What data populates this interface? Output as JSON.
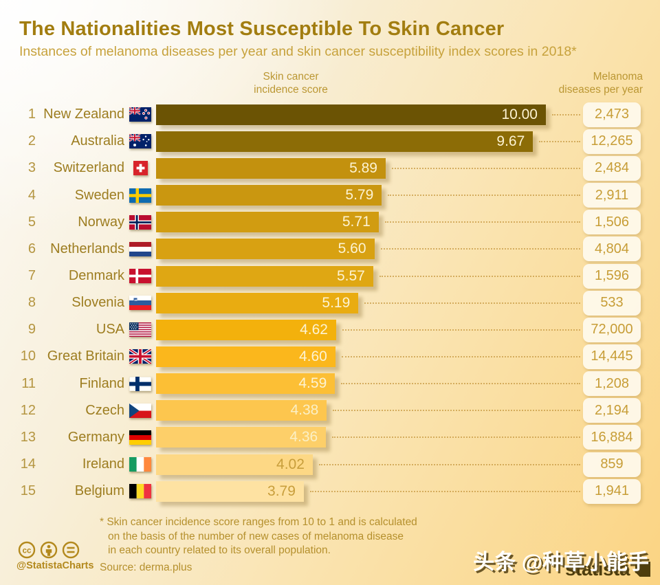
{
  "header": {
    "title": "The Nationalities Most Susceptible To Skin Cancer",
    "subtitle": "Instances of melanoma diseases per year and skin cancer susceptibility index scores in 2018*",
    "score_col_line1": "Skin cancer",
    "score_col_line2": "incidence score",
    "melanoma_col_line1": "Melanoma",
    "melanoma_col_line2": "diseases per year"
  },
  "rows": [
    {
      "rank": "1",
      "country": "New Zealand",
      "flag": "flag-new-zealand",
      "score": "10.00",
      "score_value": 10.0,
      "melanoma": "2,473",
      "bar_color": "#6b5304",
      "label_color": "#fdf3d2"
    },
    {
      "rank": "2",
      "country": "Australia",
      "flag": "flag-australia",
      "score": "9.67",
      "score_value": 9.67,
      "melanoma": "12,265",
      "bar_color": "#8c6c06",
      "label_color": "#fdf3d2"
    },
    {
      "rank": "3",
      "country": "Switzerland",
      "flag": "flag-switzerland",
      "score": "5.89",
      "score_value": 5.89,
      "melanoma": "2,484",
      "bar_color": "#c3910e",
      "label_color": "#fdf3d2"
    },
    {
      "rank": "4",
      "country": "Sweden",
      "flag": "flag-sweden",
      "score": "5.79",
      "score_value": 5.79,
      "melanoma": "2,911",
      "bar_color": "#ca9710",
      "label_color": "#fdf3d2"
    },
    {
      "rank": "5",
      "country": "Norway",
      "flag": "flag-norway",
      "score": "5.71",
      "score_value": 5.71,
      "melanoma": "1,506",
      "bar_color": "#d19c11",
      "label_color": "#fdf3d2"
    },
    {
      "rank": "6",
      "country": "Netherlands",
      "flag": "flag-netherlands",
      "score": "5.60",
      "score_value": 5.6,
      "melanoma": "4,804",
      "bar_color": "#d8a112",
      "label_color": "#fdf3d2"
    },
    {
      "rank": "7",
      "country": "Denmark",
      "flag": "flag-denmark",
      "score": "5.57",
      "score_value": 5.57,
      "melanoma": "1,596",
      "bar_color": "#dfa713",
      "label_color": "#fdf3d2"
    },
    {
      "rank": "8",
      "country": "Slovenia",
      "flag": "flag-slovenia",
      "score": "5.19",
      "score_value": 5.19,
      "melanoma": "533",
      "bar_color": "#e9ac11",
      "label_color": "#fdf3d2"
    },
    {
      "rank": "9",
      "country": "USA",
      "flag": "flag-usa",
      "score": "4.62",
      "score_value": 4.62,
      "melanoma": "72,000",
      "bar_color": "#f3b10c",
      "label_color": "#fdf3d2"
    },
    {
      "rank": "10",
      "country": "Great Britain",
      "flag": "flag-great-britain",
      "score": "4.60",
      "score_value": 4.6,
      "melanoma": "14,445",
      "bar_color": "#fbb71c",
      "label_color": "#fdf3d2"
    },
    {
      "rank": "11",
      "country": "Finland",
      "flag": "flag-finland",
      "score": "4.59",
      "score_value": 4.59,
      "melanoma": "1,208",
      "bar_color": "#fcbf35",
      "label_color": "#fdf3d2"
    },
    {
      "rank": "12",
      "country": "Czech",
      "flag": "flag-czech",
      "score": "4.38",
      "score_value": 4.38,
      "melanoma": "2,194",
      "bar_color": "#fdc64e",
      "label_color": "#fbf0c6"
    },
    {
      "rank": "13",
      "country": "Germany",
      "flag": "flag-germany",
      "score": "4.36",
      "score_value": 4.36,
      "melanoma": "16,884",
      "bar_color": "#fdcf69",
      "label_color": "#fbf0c6"
    },
    {
      "rank": "14",
      "country": "Ireland",
      "flag": "flag-ireland",
      "score": "4.02",
      "score_value": 4.02,
      "melanoma": "859",
      "bar_color": "#fdd885",
      "label_color": "#c89e3b"
    },
    {
      "rank": "15",
      "country": "Belgium",
      "flag": "flag-belgium",
      "score": "3.79",
      "score_value": 3.79,
      "melanoma": "1,941",
      "bar_color": "#fee2a2",
      "label_color": "#c89e3b"
    }
  ],
  "footer": {
    "note_lines": [
      "* Skin cancer incidence score ranges from 10 to 1 and is calculated",
      "on the basis of the number of new cases of melanoma disease",
      "in each country related to its overall population."
    ],
    "source": "Source: derma.plus",
    "credit": "@StatistaCharts"
  },
  "watermark": {
    "text": "头条 @种草小能手",
    "brand": "statista"
  },
  "colors": {
    "title": "#a27d10",
    "subtitle": "#c7a23c",
    "accent_gold": "#c79d36",
    "bar_darkest": "#6b5304",
    "bar_lightest": "#fee2a2",
    "background_top_left": "#fbfaf7",
    "background_bottom_right": "#fbd483"
  },
  "chart_data": {
    "type": "bar",
    "orientation": "horizontal",
    "title": "The Nationalities Most Susceptible To Skin Cancer",
    "subtitle": "Instances of melanoma diseases per year and skin cancer susceptibility index scores in 2018*",
    "categories": [
      "New Zealand",
      "Australia",
      "Switzerland",
      "Sweden",
      "Norway",
      "Netherlands",
      "Denmark",
      "Slovenia",
      "USA",
      "Great Britain",
      "Finland",
      "Czech",
      "Germany",
      "Ireland",
      "Belgium"
    ],
    "series": [
      {
        "name": "Skin cancer incidence score",
        "values": [
          10.0,
          9.67,
          5.89,
          5.79,
          5.71,
          5.6,
          5.57,
          5.19,
          4.62,
          4.6,
          4.59,
          4.38,
          4.36,
          4.02,
          3.79
        ]
      },
      {
        "name": "Melanoma diseases per year",
        "values": [
          2473,
          12265,
          2484,
          2911,
          1506,
          4804,
          1596,
          533,
          72000,
          14445,
          1208,
          2194,
          16884,
          859,
          1941
        ]
      }
    ],
    "xlim": [
      0,
      10
    ],
    "grid": false,
    "legend_position": "none",
    "source": "derma.plus"
  }
}
